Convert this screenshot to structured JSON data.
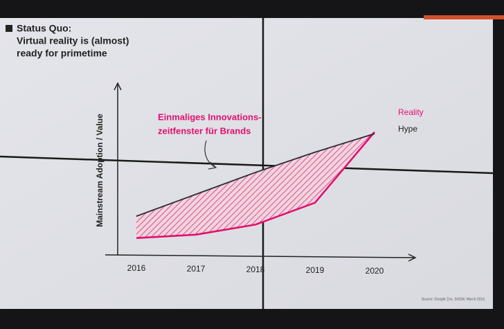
{
  "chart_data": {
    "type": "line",
    "title": [
      "Status Quo:",
      "Virtual reality is (almost)",
      "ready for primetime"
    ],
    "ylabel": "Mainstream Adoption / Value",
    "annotation": [
      "Einmaliges Innovations-",
      "zeitfenster für Brands"
    ],
    "categories": [
      "2016",
      "2017",
      "2018",
      "2019",
      "2020"
    ],
    "series": [
      {
        "name": "Reality",
        "color": "#e2106e",
        "values": [
          10,
          12,
          18,
          31,
          73
        ]
      },
      {
        "name": "Hype",
        "color": "#2a2a3a",
        "values": [
          23,
          36,
          49,
          61,
          72
        ]
      }
    ],
    "ylim": [
      0,
      100
    ],
    "hatch": true,
    "source": "Source: Google Zoo, SXSW, March 2016"
  }
}
